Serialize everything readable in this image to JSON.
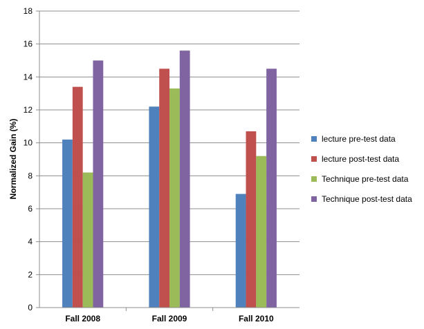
{
  "chart_data": {
    "type": "bar",
    "categories": [
      "Fall 2008",
      "Fall 2009",
      "Fall 2010"
    ],
    "series": [
      {
        "name": "lecture pre-test data",
        "color": "#4f81bd",
        "values": [
          10.2,
          12.2,
          6.9
        ]
      },
      {
        "name": "lecture post-test data",
        "color": "#c0504d",
        "values": [
          13.4,
          14.5,
          10.7
        ]
      },
      {
        "name": "Technique pre-test data",
        "color": "#9bbb59",
        "values": [
          8.2,
          13.3,
          9.2
        ]
      },
      {
        "name": "Technique post-test data",
        "color": "#8064a2",
        "values": [
          15.0,
          15.6,
          14.5
        ]
      }
    ],
    "title": "",
    "xlabel": "",
    "ylabel": "Normalized Gain (%)",
    "ylim": [
      0,
      18
    ],
    "yticks": [
      0,
      2,
      4,
      6,
      8,
      10,
      12,
      14,
      16,
      18
    ],
    "grid": true,
    "legend_position": "right"
  }
}
